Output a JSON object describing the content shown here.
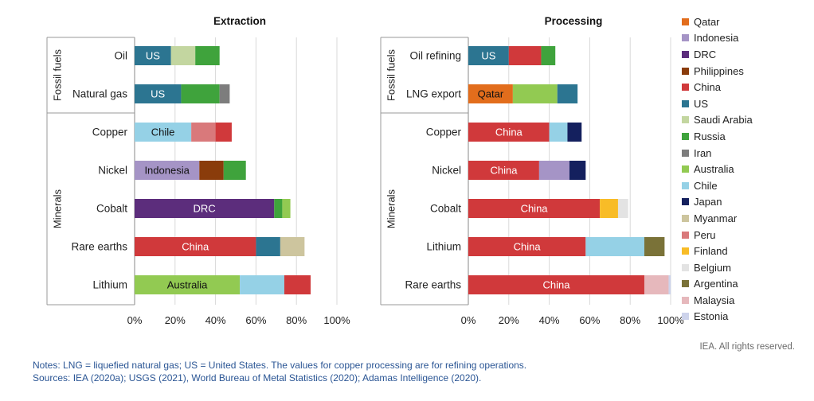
{
  "colors": {
    "Qatar": "#e26d1c",
    "Indonesia": "#a594c6",
    "DRC": "#5c2d7c",
    "Philippines": "#8a3c0b",
    "China": "#d0393b",
    "US": "#2c7591",
    "Saudi Arabia": "#c3d6a0",
    "Russia": "#3fa33c",
    "Iran": "#7d7d7d",
    "Australia": "#92ca52",
    "Chile": "#95d1e6",
    "Japan": "#14205e",
    "Myanmar": "#cdc59e",
    "Peru": "#d9797b",
    "Finland": "#f8bc27",
    "Belgium": "#e3e3e3",
    "Argentina": "#7a7238",
    "Malaysia": "#e6b8bc",
    "Estonia": "#cdd3eb"
  },
  "legend": [
    "Qatar",
    "Indonesia",
    "DRC",
    "Philippines",
    "China",
    "US",
    "Saudi Arabia",
    "Russia",
    "Iran",
    "Australia",
    "Chile",
    "Japan",
    "Myanmar",
    "Peru",
    "Finland",
    "Belgium",
    "Argentina",
    "Malaysia",
    "Estonia"
  ],
  "chart_data": [
    {
      "type": "bar",
      "orientation": "horizontal",
      "stacked": true,
      "title": "Extraction",
      "xlim": [
        0,
        100
      ],
      "xticks": [
        "0%",
        "20%",
        "40%",
        "60%",
        "80%",
        "100%"
      ],
      "groups": [
        {
          "label": "Fossil fuels",
          "categories": [
            "Oil",
            "Natural gas"
          ]
        },
        {
          "label": "Minerals",
          "categories": [
            "Copper",
            "Nickel",
            "Cobalt",
            "Rare earths",
            "Lithium"
          ]
        }
      ],
      "bars": [
        {
          "category": "Oil",
          "segments": [
            {
              "country": "US",
              "value": 18,
              "label": "US"
            },
            {
              "country": "Saudi Arabia",
              "value": 12
            },
            {
              "country": "Russia",
              "value": 12
            }
          ]
        },
        {
          "category": "Natural gas",
          "segments": [
            {
              "country": "US",
              "value": 23,
              "label": "US"
            },
            {
              "country": "Russia",
              "value": 19
            },
            {
              "country": "Iran",
              "value": 5
            }
          ]
        },
        {
          "category": "Copper",
          "segments": [
            {
              "country": "Chile",
              "value": 28,
              "label": "Chile"
            },
            {
              "country": "Peru",
              "value": 12
            },
            {
              "country": "China",
              "value": 8
            }
          ]
        },
        {
          "category": "Nickel",
          "segments": [
            {
              "country": "Indonesia",
              "value": 32,
              "label": "Indonesia"
            },
            {
              "country": "Philippines",
              "value": 12
            },
            {
              "country": "Russia",
              "value": 11
            }
          ]
        },
        {
          "category": "Cobalt",
          "segments": [
            {
              "country": "DRC",
              "value": 69,
              "label": "DRC"
            },
            {
              "country": "Russia",
              "value": 4
            },
            {
              "country": "Australia",
              "value": 4
            }
          ]
        },
        {
          "category": "Rare earths",
          "segments": [
            {
              "country": "China",
              "value": 60,
              "label": "China"
            },
            {
              "country": "US",
              "value": 12
            },
            {
              "country": "Myanmar",
              "value": 12
            }
          ]
        },
        {
          "category": "Lithium",
          "segments": [
            {
              "country": "Australia",
              "value": 52,
              "label": "Australia"
            },
            {
              "country": "Chile",
              "value": 22
            },
            {
              "country": "China",
              "value": 13
            }
          ]
        }
      ]
    },
    {
      "type": "bar",
      "orientation": "horizontal",
      "stacked": true,
      "title": "Processing",
      "xlim": [
        0,
        100
      ],
      "xticks": [
        "0%",
        "20%",
        "40%",
        "60%",
        "80%",
        "100%"
      ],
      "groups": [
        {
          "label": "Fossil fuels",
          "categories": [
            "Oil refining",
            "LNG export"
          ]
        },
        {
          "label": "Minerals",
          "categories": [
            "Copper",
            "Nickel",
            "Cobalt",
            "Lithium",
            "Rare earths"
          ]
        }
      ],
      "bars": [
        {
          "category": "Oil refining",
          "segments": [
            {
              "country": "US",
              "value": 20,
              "label": "US"
            },
            {
              "country": "China",
              "value": 16
            },
            {
              "country": "Russia",
              "value": 7
            }
          ]
        },
        {
          "category": "LNG export",
          "segments": [
            {
              "country": "Qatar",
              "value": 22,
              "label": "Qatar"
            },
            {
              "country": "Australia",
              "value": 22
            },
            {
              "country": "US",
              "value": 10
            }
          ]
        },
        {
          "category": "Copper",
          "segments": [
            {
              "country": "China",
              "value": 40,
              "label": "China"
            },
            {
              "country": "Chile",
              "value": 9
            },
            {
              "country": "Japan",
              "value": 7
            }
          ]
        },
        {
          "category": "Nickel",
          "segments": [
            {
              "country": "China",
              "value": 35,
              "label": "China"
            },
            {
              "country": "Indonesia",
              "value": 15
            },
            {
              "country": "Japan",
              "value": 8
            }
          ]
        },
        {
          "category": "Cobalt",
          "segments": [
            {
              "country": "China",
              "value": 65,
              "label": "China"
            },
            {
              "country": "Finland",
              "value": 9
            },
            {
              "country": "Belgium",
              "value": 5
            }
          ]
        },
        {
          "category": "Lithium",
          "segments": [
            {
              "country": "China",
              "value": 58,
              "label": "China"
            },
            {
              "country": "Chile",
              "value": 29
            },
            {
              "country": "Argentina",
              "value": 10
            }
          ]
        },
        {
          "category": "Rare earths",
          "segments": [
            {
              "country": "China",
              "value": 87,
              "label": "China"
            },
            {
              "country": "Malaysia",
              "value": 12
            },
            {
              "country": "Estonia",
              "value": 1
            }
          ]
        }
      ]
    }
  ],
  "notes": {
    "line1": "Notes: LNG = liquefied natural gas; US = United States. The values for copper processing are for refining operations.",
    "line2": "Sources: IEA (2020a); USGS (2021), World Bureau of Metal Statistics (2020); Adamas Intelligence (2020)."
  },
  "credit": "IEA. All rights reserved."
}
